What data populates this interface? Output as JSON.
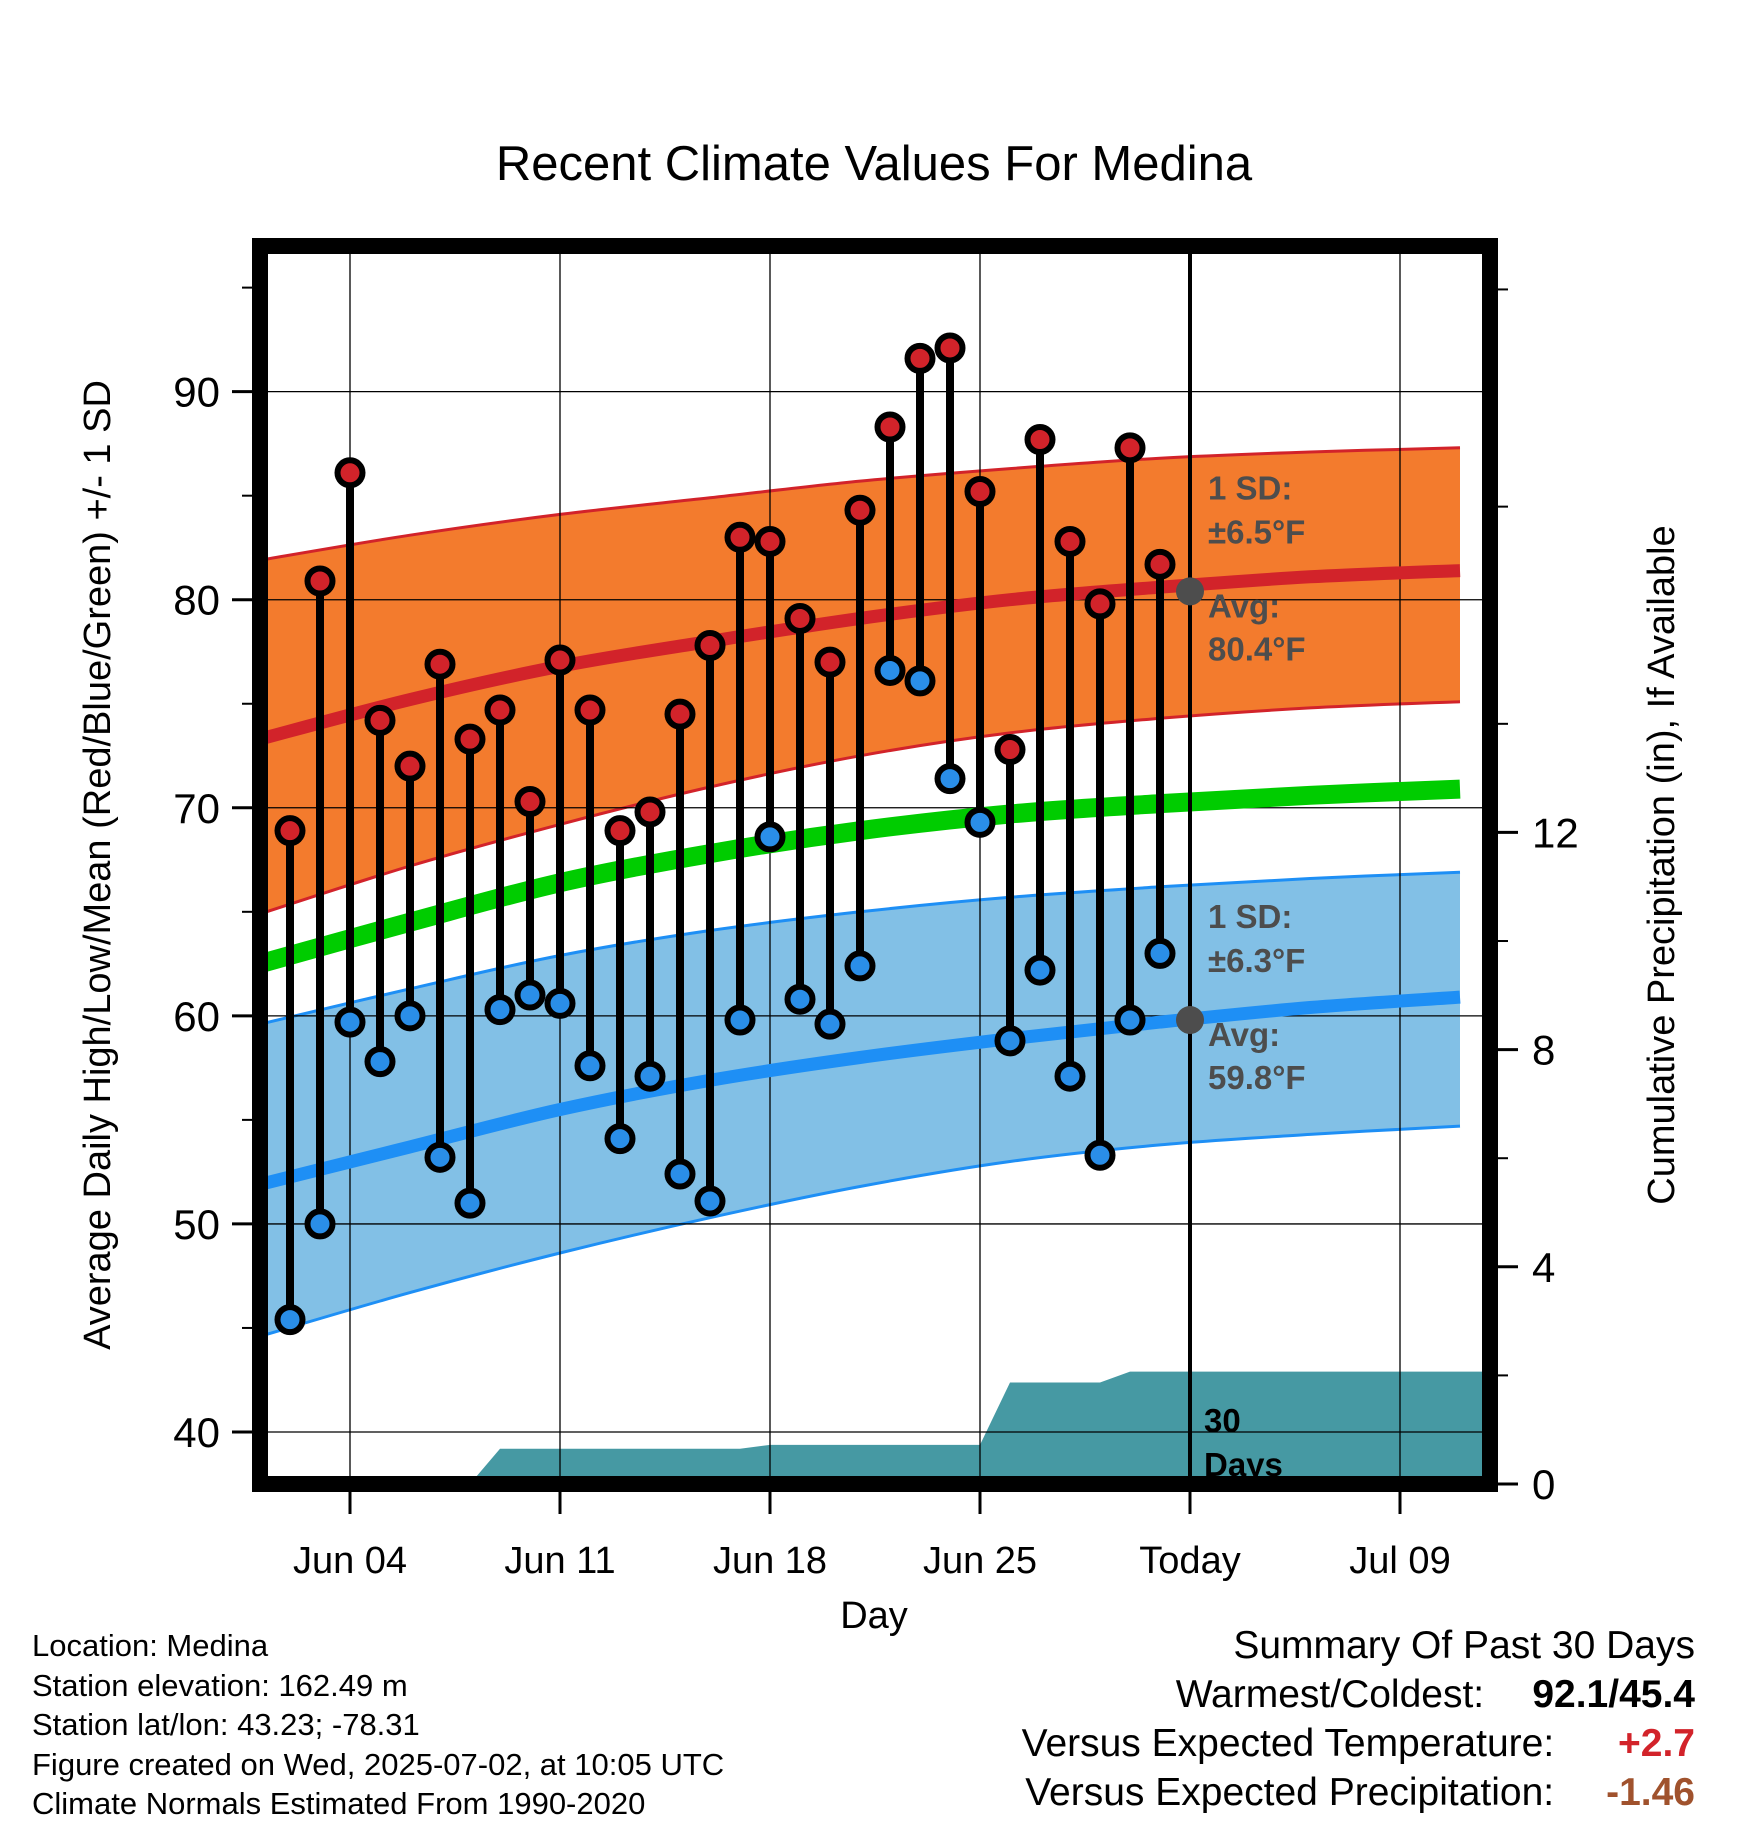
{
  "chart_data": {
    "type": "line",
    "title": "Recent Climate Values For Medina",
    "xlabel": "Day",
    "ylabel": "Average Daily High/Low/Mean (Red/Blue/Green) +/- 1 SD",
    "y2label": "Cumulative Precipitation (in), If Available",
    "ylim": [
      37.5,
      97
    ],
    "y2lim": [
      0,
      22.8
    ],
    "yticks": [
      "40",
      "50",
      "60",
      "70",
      "80",
      "90"
    ],
    "y2ticks": [
      "0",
      "4",
      "8",
      "12"
    ],
    "xlim": [
      "2025-06-01",
      "2025-07-12"
    ],
    "xticks": [
      {
        "date": "2025-06-04",
        "label": "Jun 04"
      },
      {
        "date": "2025-06-11",
        "label": "Jun 11"
      },
      {
        "date": "2025-06-18",
        "label": "Jun 18"
      },
      {
        "date": "2025-06-25",
        "label": "Jun 25"
      },
      {
        "date": "2025-07-02",
        "label": "Today"
      },
      {
        "date": "2025-07-09",
        "label": "Jul 09"
      }
    ],
    "today": "2025-07-02",
    "grid": true,
    "daily": [
      {
        "date": "2025-06-02",
        "high": 68.9,
        "low": 45.4
      },
      {
        "date": "2025-06-03",
        "high": 80.9,
        "low": 50.0
      },
      {
        "date": "2025-06-04",
        "high": 86.1,
        "low": 59.7
      },
      {
        "date": "2025-06-05",
        "high": 74.2,
        "low": 57.8
      },
      {
        "date": "2025-06-06",
        "high": 72.0,
        "low": 60.0
      },
      {
        "date": "2025-06-07",
        "high": 76.9,
        "low": 53.2
      },
      {
        "date": "2025-06-08",
        "high": 73.3,
        "low": 51.0
      },
      {
        "date": "2025-06-09",
        "high": 74.7,
        "low": 60.3
      },
      {
        "date": "2025-06-10",
        "high": 70.3,
        "low": 61.0
      },
      {
        "date": "2025-06-11",
        "high": 77.1,
        "low": 60.6
      },
      {
        "date": "2025-06-12",
        "high": 74.7,
        "low": 57.6
      },
      {
        "date": "2025-06-13",
        "high": 68.9,
        "low": 54.1
      },
      {
        "date": "2025-06-14",
        "high": 69.8,
        "low": 57.1
      },
      {
        "date": "2025-06-15",
        "high": 74.5,
        "low": 52.4
      },
      {
        "date": "2025-06-16",
        "high": 77.8,
        "low": 51.1
      },
      {
        "date": "2025-06-17",
        "high": 83.0,
        "low": 59.8
      },
      {
        "date": "2025-06-18",
        "high": 82.8,
        "low": 68.6
      },
      {
        "date": "2025-06-19",
        "high": 79.1,
        "low": 60.8
      },
      {
        "date": "2025-06-20",
        "high": 77.0,
        "low": 59.6
      },
      {
        "date": "2025-06-21",
        "high": 84.3,
        "low": 62.4
      },
      {
        "date": "2025-06-22",
        "high": 88.3,
        "low": 76.6
      },
      {
        "date": "2025-06-23",
        "high": 91.6,
        "low": 76.1
      },
      {
        "date": "2025-06-24",
        "high": 92.1,
        "low": 71.4
      },
      {
        "date": "2025-06-25",
        "high": 85.2,
        "low": 69.3
      },
      {
        "date": "2025-06-26",
        "high": 72.8,
        "low": 58.8
      },
      {
        "date": "2025-06-27",
        "high": 87.7,
        "low": 62.2
      },
      {
        "date": "2025-06-28",
        "high": 82.8,
        "low": 57.1
      },
      {
        "date": "2025-06-29",
        "high": 79.8,
        "low": 53.3
      },
      {
        "date": "2025-06-30",
        "high": 87.3,
        "low": 59.8
      },
      {
        "date": "2025-07-01",
        "high": 81.7,
        "low": 63.0
      }
    ],
    "normals": {
      "dates": [
        "2025-06-01",
        "2025-06-06",
        "2025-06-11",
        "2025-06-16",
        "2025-06-21",
        "2025-06-26",
        "2025-07-01",
        "2025-07-06",
        "2025-07-11"
      ],
      "high_avg": [
        73.3,
        75.2,
        76.8,
        78.0,
        79.1,
        80.0,
        80.6,
        81.1,
        81.4
      ],
      "high_sd_upper": [
        81.9,
        83.1,
        84.1,
        84.9,
        85.7,
        86.3,
        86.8,
        87.1,
        87.3
      ],
      "high_sd_lower": [
        64.9,
        67.2,
        69.2,
        71.0,
        72.5,
        73.6,
        74.3,
        74.8,
        75.1
      ],
      "mean": [
        62.5,
        64.5,
        66.4,
        67.8,
        68.9,
        69.7,
        70.2,
        70.6,
        70.9
      ],
      "low_avg": [
        51.9,
        53.7,
        55.5,
        56.9,
        58.0,
        58.9,
        59.7,
        60.4,
        60.9
      ],
      "low_sd_upper": [
        59.6,
        61.3,
        62.9,
        64.1,
        65.0,
        65.7,
        66.2,
        66.6,
        66.9
      ],
      "low_sd_lower": [
        44.6,
        46.7,
        48.6,
        50.3,
        51.8,
        53.0,
        53.8,
        54.3,
        54.7
      ]
    },
    "precip_cumulative": {
      "dates": [
        "2025-06-01",
        "2025-06-07",
        "2025-06-08",
        "2025-06-09",
        "2025-06-17",
        "2025-06-18",
        "2025-06-24",
        "2025-06-25",
        "2025-06-26",
        "2025-06-29",
        "2025-06-30",
        "2025-07-12"
      ],
      "values": [
        0,
        0,
        0,
        0.65,
        0.65,
        0.72,
        0.72,
        0.72,
        1.87,
        1.87,
        2.07,
        2.07
      ]
    },
    "annotations": {
      "high_sd_label": "1 SD:",
      "high_sd_value": "±6.5°F",
      "high_avg_label": "Avg:",
      "high_avg_value": "80.4°F",
      "high_avg_today": 80.4,
      "low_sd_label": "1 SD:",
      "low_sd_value": "±6.3°F",
      "low_avg_label": "Avg:",
      "low_avg_value": "59.8°F",
      "low_avg_today": 59.8,
      "days_label_1": "30",
      "days_label_2": "Days"
    },
    "colors": {
      "high_band": "#f37b2d",
      "high_line": "#d2232a",
      "low_band": "#82c0e6",
      "low_line": "#1e8ff5",
      "mean_line": "#00cc00",
      "precip_fill": "#4699a3",
      "annotation_text": "#4d4d4d",
      "marker_today": "#4d4d4d",
      "high_dot": "#d2232a",
      "low_dot": "#2a8ee8"
    }
  },
  "info": {
    "location": "Location: Medina",
    "elevation": "Station elevation: 162.49 m",
    "latlon": "Station lat/lon: 43.23; -78.31",
    "created": "Figure created on Wed, 2025-07-02, at 10:05 UTC",
    "normals": "Climate Normals Estimated From 1990-2020"
  },
  "summary": {
    "title": "Summary Of Past 30 Days",
    "warm_cold_label": "Warmest/Coldest:",
    "warm_cold_value": "92.1/45.4",
    "temp_label": "Versus Expected Temperature:",
    "temp_value": "+2.7",
    "temp_color": "#d2232a",
    "precip_label": "Versus Expected Precipitation:",
    "precip_value": "-1.46",
    "precip_color": "#a0522d"
  }
}
